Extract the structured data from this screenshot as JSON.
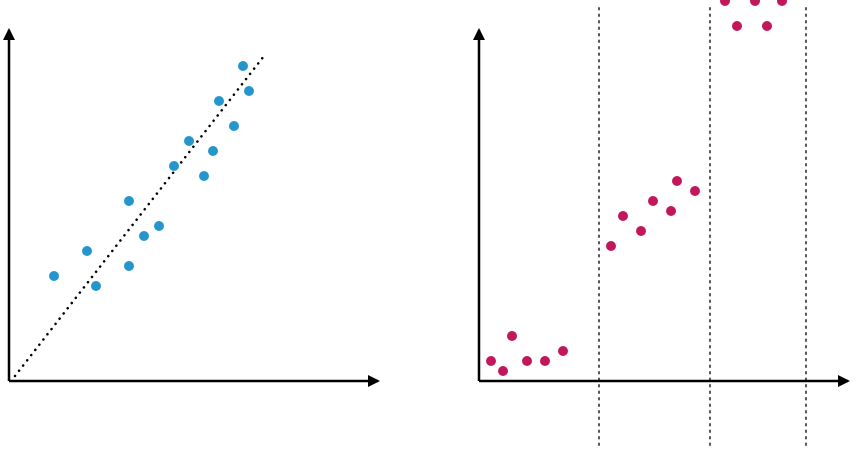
{
  "chart_data": [
    {
      "type": "scatter",
      "title": "",
      "xlabel": "",
      "ylabel": "",
      "grid": false,
      "xlim": [
        0,
        12
      ],
      "ylim": [
        0,
        8.5
      ],
      "colors": {
        "points": "#2596cc",
        "axis": "#000000",
        "trend": "#000000"
      },
      "series": [
        {
          "x": [
            1.5,
            2.6,
            2.9,
            4.0,
            4.0,
            4.5,
            5.0,
            5.5,
            6.0,
            6.5,
            6.8,
            7.0,
            7.5,
            7.8,
            8.0
          ],
          "y": [
            2.1,
            2.6,
            1.9,
            3.6,
            2.3,
            2.9,
            3.1,
            4.3,
            4.8,
            4.1,
            4.6,
            5.6,
            5.1,
            6.3,
            5.8
          ]
        }
      ],
      "trendline": {
        "x": [
          0.2,
          8.5
        ],
        "y": [
          0.1,
          6.5
        ],
        "style": "dotted"
      }
    },
    {
      "type": "scatter",
      "title": "",
      "xlabel": "",
      "ylabel": "",
      "grid": false,
      "xlim": [
        0,
        12
      ],
      "ylim": [
        0,
        8.5
      ],
      "colors": {
        "points": "#c2185b",
        "axis": "#000000",
        "dividers": "#555555"
      },
      "series": [
        {
          "x": [
            0.4,
            0.8,
            1.1,
            1.6,
            2.2,
            2.8,
            4.4,
            4.8,
            5.4,
            5.8,
            6.4,
            6.6,
            7.2,
            8.2,
            8.6,
            9.2,
            9.6,
            10.1
          ],
          "y": [
            0.4,
            0.2,
            0.9,
            0.4,
            0.4,
            0.6,
            2.7,
            3.3,
            3.0,
            3.6,
            3.4,
            4.0,
            3.8,
            7.6,
            7.1,
            7.6,
            7.1,
            7.6
          ]
        }
      ],
      "dividers_x": [
        4.0,
        7.7,
        10.9
      ]
    }
  ]
}
